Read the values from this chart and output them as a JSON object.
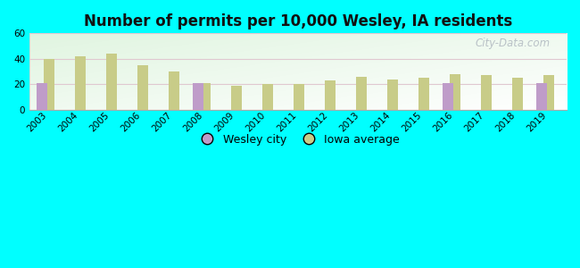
{
  "title": "Number of permits per 10,000 Wesley, IA residents",
  "years": [
    2003,
    2004,
    2005,
    2006,
    2007,
    2008,
    2009,
    2010,
    2011,
    2012,
    2013,
    2014,
    2015,
    2016,
    2017,
    2018,
    2019
  ],
  "wesley_values": [
    21,
    null,
    null,
    null,
    null,
    21,
    null,
    null,
    null,
    null,
    null,
    null,
    null,
    21,
    null,
    null,
    21
  ],
  "iowa_values": [
    40,
    42,
    44,
    35,
    30,
    21,
    19,
    20,
    20,
    23,
    26,
    24,
    25,
    28,
    27,
    25,
    27
  ],
  "bar_width": 0.35,
  "bar_gap": 0.05,
  "ylim": [
    0,
    60
  ],
  "yticks": [
    0,
    20,
    40,
    60
  ],
  "background_color": "#00FFFF",
  "wesley_color": "#bf9cc9",
  "iowa_color": "#c8cc88",
  "grid_color": "#dddddd",
  "legend_labels": [
    "Wesley city",
    "Iowa average"
  ],
  "watermark": "City-Data.com",
  "title_fontsize": 12,
  "tick_fontsize": 7.5,
  "legend_fontsize": 9
}
